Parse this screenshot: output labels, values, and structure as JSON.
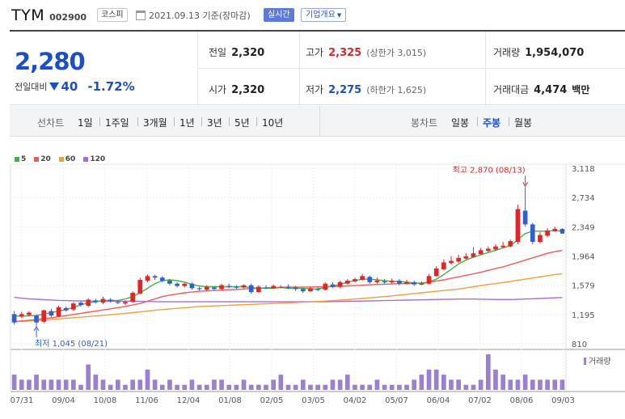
{
  "stock": {
    "name": "TYM",
    "code": "002900",
    "market": "코스피",
    "date_text": "2021.09.13 기준(장마감)",
    "live": "실시간",
    "corp_info": "기업개요"
  },
  "quote": {
    "price": "2,280",
    "change_label": "전일대비",
    "change": "40",
    "change_pct": "-1.72%",
    "prev_label": "전일",
    "prev": "2,320",
    "open_label": "시가",
    "open": "2,320",
    "high_label": "고가",
    "high": "2,325",
    "upper_limit": "(상한가 3,015)",
    "low_label": "저가",
    "low": "2,275",
    "lower_limit": "(하한가 1,625)",
    "volume_label": "거래량",
    "volume": "1,954,070",
    "amount_label": "거래대금",
    "amount": "4,474",
    "amount_unit": "백만"
  },
  "line_chart_bar": {
    "title": "선차트",
    "periods": [
      "1일",
      "1주일",
      "3개월",
      "1년",
      "3년",
      "5년",
      "10년"
    ]
  },
  "candle_bar": {
    "title": "봉차트",
    "periods": [
      "일봉",
      "주봉",
      "월봉"
    ],
    "selected": "주봉"
  },
  "colors": {
    "up": "#e0262a",
    "down": "#2f5fd0",
    "ma5": "#3fb53f",
    "ma20": "#f05a5a",
    "ma60": "#f0a040",
    "ma120": "#a66fd8",
    "volume": "#9b7fd1"
  },
  "chart_data": {
    "type": "candlestick",
    "legend": [
      "5",
      "20",
      "60",
      "120"
    ],
    "y_ticks": [
      3118,
      2734,
      2349,
      1964,
      1579,
      1195,
      810
    ],
    "ylim": [
      810,
      3118
    ],
    "x_ticks": [
      "07/31",
      "09/04",
      "10/08",
      "11/06",
      "12/04",
      "01/08",
      "02/05",
      "03/05",
      "04/02",
      "05/07",
      "06/04",
      "07/02",
      "08/06",
      "09/03"
    ],
    "annotations": {
      "high": "최고 2,870 (08/13)",
      "low": "최저 1,045 (08/21)"
    },
    "volume_label": "거래량",
    "candles": [
      [
        1200,
        1090,
        1240,
        1060
      ],
      [
        1170,
        1200,
        1230,
        1150
      ],
      [
        1190,
        1220,
        1240,
        1170
      ],
      [
        1180,
        1090,
        1200,
        1045
      ],
      [
        1100,
        1250,
        1260,
        1080
      ],
      [
        1240,
        1180,
        1270,
        1160
      ],
      [
        1170,
        1290,
        1310,
        1160
      ],
      [
        1280,
        1250,
        1300,
        1230
      ],
      [
        1260,
        1340,
        1360,
        1240
      ],
      [
        1350,
        1320,
        1370,
        1300
      ],
      [
        1310,
        1390,
        1410,
        1290
      ],
      [
        1380,
        1360,
        1400,
        1340
      ],
      [
        1350,
        1400,
        1430,
        1330
      ],
      [
        1390,
        1370,
        1410,
        1350
      ],
      [
        1360,
        1350,
        1380,
        1330
      ],
      [
        1340,
        1360,
        1380,
        1320
      ],
      [
        1360,
        1480,
        1500,
        1350
      ],
      [
        1470,
        1650,
        1680,
        1460
      ],
      [
        1640,
        1700,
        1720,
        1620
      ],
      [
        1700,
        1680,
        1720,
        1650
      ],
      [
        1680,
        1640,
        1700,
        1620
      ],
      [
        1640,
        1600,
        1660,
        1580
      ],
      [
        1600,
        1570,
        1620,
        1550
      ],
      [
        1570,
        1600,
        1610,
        1550
      ],
      [
        1600,
        1540,
        1620,
        1520
      ],
      [
        1540,
        1530,
        1560,
        1510
      ],
      [
        1520,
        1560,
        1580,
        1500
      ],
      [
        1550,
        1530,
        1570,
        1510
      ],
      [
        1530,
        1580,
        1600,
        1510
      ],
      [
        1570,
        1560,
        1600,
        1540
      ],
      [
        1560,
        1550,
        1580,
        1530
      ],
      [
        1550,
        1580,
        1590,
        1540
      ],
      [
        1580,
        1490,
        1600,
        1470
      ],
      [
        1490,
        1560,
        1580,
        1480
      ],
      [
        1550,
        1540,
        1580,
        1530
      ],
      [
        1540,
        1570,
        1590,
        1530
      ],
      [
        1560,
        1560,
        1580,
        1540
      ],
      [
        1560,
        1550,
        1590,
        1530
      ],
      [
        1550,
        1530,
        1570,
        1500
      ],
      [
        1530,
        1500,
        1540,
        1480
      ],
      [
        1500,
        1540,
        1560,
        1490
      ],
      [
        1530,
        1520,
        1550,
        1500
      ],
      [
        1520,
        1600,
        1620,
        1510
      ],
      [
        1590,
        1560,
        1620,
        1540
      ],
      [
        1560,
        1620,
        1640,
        1540
      ],
      [
        1600,
        1640,
        1660,
        1590
      ],
      [
        1630,
        1660,
        1680,
        1620
      ],
      [
        1650,
        1700,
        1730,
        1640
      ],
      [
        1690,
        1620,
        1710,
        1600
      ],
      [
        1620,
        1640,
        1680,
        1600
      ],
      [
        1630,
        1620,
        1660,
        1600
      ],
      [
        1620,
        1640,
        1670,
        1600
      ],
      [
        1640,
        1600,
        1660,
        1580
      ],
      [
        1600,
        1620,
        1650,
        1590
      ],
      [
        1620,
        1590,
        1640,
        1570
      ],
      [
        1590,
        1600,
        1630,
        1580
      ],
      [
        1600,
        1700,
        1730,
        1590
      ],
      [
        1700,
        1800,
        1830,
        1690
      ],
      [
        1790,
        1880,
        1920,
        1780
      ],
      [
        1870,
        1900,
        1960,
        1850
      ],
      [
        1890,
        1940,
        1980,
        1870
      ],
      [
        1930,
        1960,
        2000,
        1910
      ],
      [
        1950,
        2000,
        2080,
        1940
      ],
      [
        1990,
        2040,
        2070,
        1980
      ],
      [
        2030,
        2060,
        2090,
        2010
      ],
      [
        2050,
        2090,
        2120,
        2030
      ],
      [
        2080,
        2100,
        2150,
        2070
      ],
      [
        2090,
        2160,
        2180,
        2080
      ],
      [
        2150,
        2580,
        2640,
        2120
      ],
      [
        2560,
        2380,
        2870,
        2350
      ],
      [
        2380,
        2150,
        2400,
        2120
      ],
      [
        2150,
        2240,
        2280,
        2130
      ],
      [
        2230,
        2300,
        2330,
        2210
      ],
      [
        2290,
        2320,
        2350,
        2280
      ],
      [
        2320,
        2280,
        2330,
        2270
      ]
    ],
    "volume": [
      3,
      2,
      2,
      3,
      2,
      2,
      2,
      2,
      2,
      1,
      5,
      3,
      2,
      1,
      2,
      1,
      2,
      2,
      4,
      2,
      1,
      2,
      1,
      1,
      2,
      1,
      1,
      2,
      2,
      1,
      1,
      2,
      1,
      1,
      1,
      2,
      3,
      1,
      1,
      2,
      1,
      1,
      1,
      2,
      2,
      3,
      1,
      1,
      1,
      2,
      1,
      1,
      1,
      1,
      2,
      3,
      4,
      4,
      3,
      2,
      2,
      1,
      1,
      2,
      7,
      4,
      3,
      2,
      2,
      3,
      2,
      2,
      2,
      2,
      2
    ],
    "ma5": [
      1180,
      1170,
      1180,
      1180,
      1200,
      1220,
      1240,
      1260,
      1290,
      1320,
      1350,
      1360,
      1380,
      1380,
      1380,
      1400,
      1430,
      1480,
      1540,
      1600,
      1640,
      1650,
      1640,
      1620,
      1590,
      1570,
      1560,
      1560,
      1560,
      1560,
      1560,
      1560,
      1550,
      1540,
      1540,
      1540,
      1550,
      1540,
      1540,
      1540,
      1530,
      1530,
      1550,
      1570,
      1590,
      1620,
      1640,
      1660,
      1660,
      1650,
      1640,
      1630,
      1630,
      1620,
      1610,
      1600,
      1620,
      1660,
      1720,
      1790,
      1860,
      1910,
      1950,
      1980,
      2010,
      2040,
      2070,
      2100,
      2180,
      2260,
      2290,
      2290,
      2290,
      2300,
      2290
    ],
    "ma20": [
      1100,
      1110,
      1120,
      1130,
      1140,
      1150,
      1165,
      1180,
      1195,
      1210,
      1225,
      1240,
      1255,
      1270,
      1285,
      1300,
      1320,
      1340,
      1370,
      1400,
      1430,
      1450,
      1465,
      1480,
      1490,
      1500,
      1505,
      1510,
      1515,
      1520,
      1525,
      1530,
      1535,
      1540,
      1545,
      1550,
      1552,
      1554,
      1556,
      1556,
      1557,
      1558,
      1560,
      1562,
      1565,
      1570,
      1575,
      1580,
      1585,
      1590,
      1593,
      1596,
      1600,
      1602,
      1605,
      1610,
      1620,
      1635,
      1650,
      1670,
      1690,
      1710,
      1730,
      1750,
      1775,
      1800,
      1820,
      1850,
      1880,
      1910,
      1940,
      1970,
      2000,
      2020,
      2040
    ],
    "ma60": [
      1100,
      1105,
      1110,
      1115,
      1120,
      1128,
      1136,
      1144,
      1152,
      1160,
      1168,
      1176,
      1184,
      1192,
      1200,
      1210,
      1220,
      1230,
      1240,
      1250,
      1260,
      1268,
      1276,
      1284,
      1292,
      1300,
      1304,
      1308,
      1312,
      1316,
      1320,
      1324,
      1328,
      1332,
      1336,
      1340,
      1344,
      1348,
      1352,
      1356,
      1360,
      1366,
      1372,
      1378,
      1384,
      1390,
      1398,
      1406,
      1414,
      1422,
      1430,
      1440,
      1450,
      1460,
      1470,
      1480,
      1490,
      1500,
      1510,
      1520,
      1530,
      1545,
      1560,
      1575,
      1590,
      1600,
      1615,
      1630,
      1645,
      1660,
      1675,
      1690,
      1705,
      1720,
      1730
    ],
    "ma120": [
      1420,
      1410,
      1400,
      1395,
      1390,
      1385,
      1380,
      1378,
      1376,
      1374,
      1372,
      1370,
      1370,
      1370,
      1370,
      1370,
      1370,
      1368,
      1366,
      1364,
      1362,
      1362,
      1362,
      1362,
      1362,
      1362,
      1362,
      1362,
      1362,
      1362,
      1362,
      1362,
      1362,
      1362,
      1362,
      1362,
      1362,
      1362,
      1362,
      1362,
      1362,
      1362,
      1362,
      1364,
      1366,
      1368,
      1370,
      1372,
      1374,
      1376,
      1378,
      1380,
      1382,
      1384,
      1386,
      1388,
      1390,
      1392,
      1394,
      1396,
      1398,
      1398,
      1398,
      1396,
      1394,
      1392,
      1392,
      1392,
      1395,
      1398,
      1402,
      1406,
      1410,
      1414,
      1418
    ]
  }
}
